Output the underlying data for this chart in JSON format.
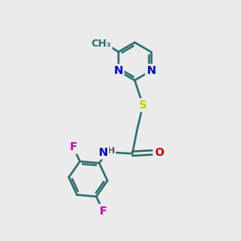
{
  "bg_color": "#ebebeb",
  "bond_color": "#2d6e6e",
  "bond_width": 1.8,
  "atom_colors": {
    "N": "#0000cc",
    "S": "#cccc00",
    "O": "#cc0000",
    "F": "#cc00cc",
    "H": "#555555",
    "C": "#2d6e6e"
  },
  "font_size": 10,
  "small_font_size": 9
}
